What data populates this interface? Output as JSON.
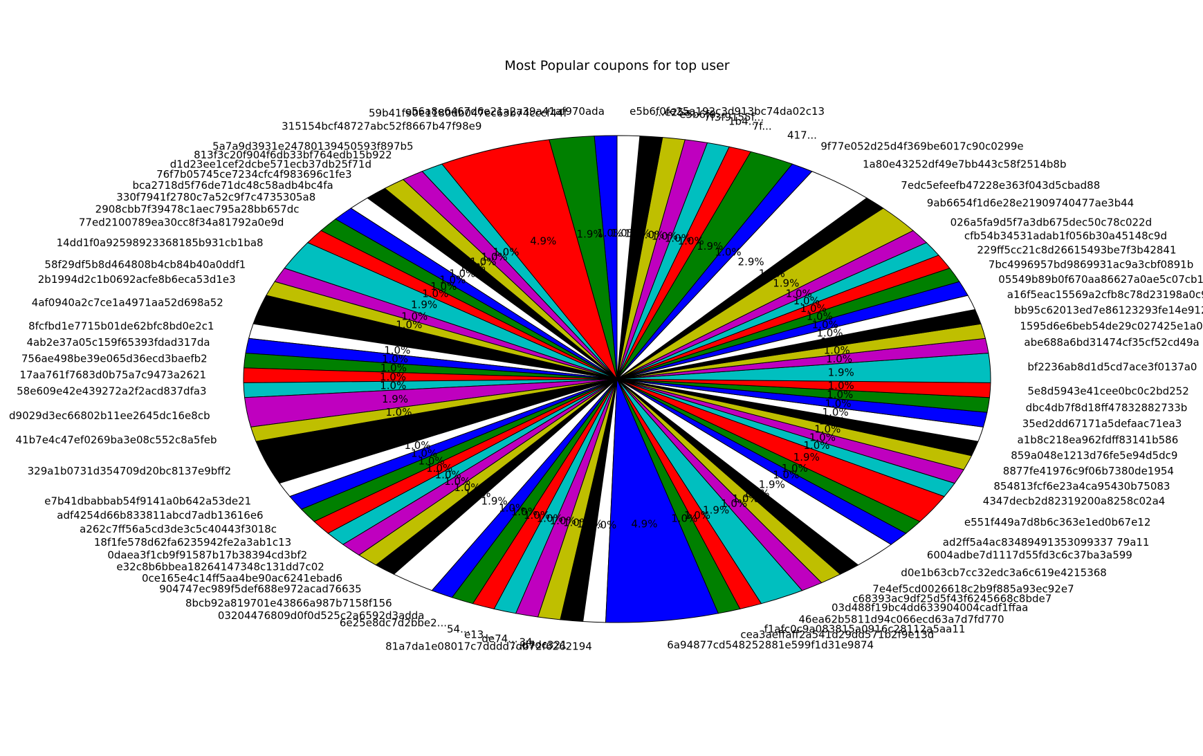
{
  "chart_data": {
    "type": "pie",
    "title": "Most Popular coupons for top user",
    "colors": [
      "#0000ff",
      "#008000",
      "#ff0000",
      "#00bfbf",
      "#bf00bf",
      "#bfbf00",
      "#000000",
      "#ffffff"
    ],
    "start_angle_deg": 90,
    "direction": "counterclockwise",
    "slices": [
      {
        "label": "e56a8e6467d6e21a2a39a41af970ada",
        "value": 1.0
      },
      {
        "label": "59b41f90e1180db047ec63b74cccf44f",
        "value": 2.0
      },
      {
        "label": "315154bcf48727abc52f8667b47f98e9",
        "value": 5.0
      },
      {
        "label": "5a7a9d3931e24780139450593f897b5",
        "value": 1.0
      },
      {
        "label": "813f3c20f904f6db33bf764edb15b922",
        "value": 1.0
      },
      {
        "label": "d1d23ee1cef2dcbe571ecb37db25f71d",
        "value": 1.0
      },
      {
        "label": "76f7b05745ce7234cfc4f983696c1fe3",
        "value": 1.0
      },
      {
        "label": "bca2718d5f76de71dc48c58adb4bc4fa",
        "value": 1.0
      },
      {
        "label": "330f7941f2780c7a52c9f7c4735305a8",
        "value": 1.0
      },
      {
        "label": "2908cbb7f39478c1aec795a28bb657dc",
        "value": 1.0
      },
      {
        "label": "77ed2100789ea30cc8f34a81792a0e9d",
        "value": 1.0
      },
      {
        "label": "14dd1f0a92598923368185b931cb1ba8",
        "value": 2.0
      },
      {
        "label": "58f29df5b8d464808b4cb84b40a0ddf1",
        "value": 1.0
      },
      {
        "label": "2b1994d2c1b0692acfe8b6eca53d1e3",
        "value": 1.0
      },
      {
        "label": "4af0940a2c7ce1a4971aa52d698a52",
        "value": 2.0
      },
      {
        "label": "8fcfbd1e7715b01de62bfc8bd0e2c1",
        "value": 1.0
      },
      {
        "label": "4ab2e37a05c159f65393fdad317da",
        "value": 1.0
      },
      {
        "label": "756ae498be39e065d36ecd3baefb2",
        "value": 1.0
      },
      {
        "label": "17aa761f7683d0b75a7c9473a2621",
        "value": 1.0
      },
      {
        "label": "58e609e42e439272a2f2acd837dfa3",
        "value": 1.0
      },
      {
        "label": "d9029d3ec66802b11ee2645dc16e8cb",
        "value": 2.0
      },
      {
        "label": "41b7e4c47ef0269ba3e08c552c8a5feb",
        "value": 1.0
      },
      {
        "label": "329a1b0731d354709d20bc8137e9bff2",
        "value": 3.0
      },
      {
        "label": "e7b41dbabbab54f9141a0b642a53de21",
        "value": 1.0
      },
      {
        "label": "adf4254d66b833811abcd7adb13616e6",
        "value": 1.0
      },
      {
        "label": "a262c7ff56a5cd3de3c5c40443f3018c",
        "value": 1.0
      },
      {
        "label": "18f1fe578d62fa6235942fe2a3ab1c13",
        "value": 1.0
      },
      {
        "label": "0daea3f1cb9f91587b17b38394cd3bf2",
        "value": 1.0
      },
      {
        "label": "e32c8b6bbea18264147348c131dd7c02",
        "value": 1.0
      },
      {
        "label": "0ce165e4c14ff5aa4be90ac6241ebad6",
        "value": 1.0
      },
      {
        "label": "904747ec989f5def688e972acad76635",
        "value": 1.0
      },
      {
        "label": "8bcb92a819701e43866a987b7158f156",
        "value": 2.0
      },
      {
        "label": "03204476809d0f0d525c2a6592d3adda",
        "value": 1.0
      },
      {
        "label": "6e25e8dc7d2bbe2...",
        "value": 1.0
      },
      {
        "label": "54...",
        "value": 1.0
      },
      {
        "label": "e13...",
        "value": 1.0
      },
      {
        "label": "de74...",
        "value": 1.0
      },
      {
        "label": "34...",
        "value": 1.0
      },
      {
        "label": "...d7dc321",
        "value": 1.0
      },
      {
        "label": "81a7da1e08017c7dddd7db72f6262194",
        "value": 1.0
      },
      {
        "label": "6a94877cd548252881e599f1d31e9874",
        "value": 5.0
      },
      {
        "label": "cea3aeffaff2a541d29dd571b2f9e13d",
        "value": 1.0
      },
      {
        "label": "f1afc0c9a083815a0916c28112a5aa11",
        "value": 1.0
      },
      {
        "label": "46ea62b5811d94c066ecd63a7d7fd770",
        "value": 2.0
      },
      {
        "label": "03d488f19bc4dd633904004cadf1ffaa",
        "value": 1.0
      },
      {
        "label": "c68393ac9df25d5f43f6245668c8bde7",
        "value": 1.0
      },
      {
        "label": "7e4ef5cd0026618c2b9f885a93ec92e7",
        "value": 1.0
      },
      {
        "label": "d0e1b63cb7cc32edc3a6c619e4215368",
        "value": 2.0
      },
      {
        "label": "6004adbe7d1117d55fd3c6c37ba3a599",
        "value": 1.0
      },
      {
        "label": "ad2ff5a4ac83489491353099337 79a11",
        "value": 1.0
      },
      {
        "label": "e551f449a7d8b6c363e1ed0b67e12",
        "value": 2.0
      },
      {
        "label": "4347decb2d82319200a8258c02a4",
        "value": 1.0
      },
      {
        "label": "854813fcf6e23a4ca95430b75083",
        "value": 1.0
      },
      {
        "label": "8877fe41976c9f06b7380de1954",
        "value": 1.0
      },
      {
        "label": "859a048e1213d76fe5e94d5dc9",
        "value": 1.0
      },
      {
        "label": "a1b8c218ea962fdff83141b586",
        "value": 1.0
      },
      {
        "label": "35ed2dd67171a5defaac71ea3",
        "value": 1.0
      },
      {
        "label": "dbc4db7f8d18ff47832882733b",
        "value": 1.0
      },
      {
        "label": "5e8d5943e41cee0bc0c2bd252",
        "value": 1.0
      },
      {
        "label": "bf2236ab8d1d5cd7ace3f0137a0",
        "value": 2.0
      },
      {
        "label": "abe688a6bd31474cf35cf52cd49a",
        "value": 1.0
      },
      {
        "label": "1595d6e6beb54de29c027425e1a0",
        "value": 1.0
      },
      {
        "label": "bb95c62013ed7e86123293fe14e912",
        "value": 1.0
      },
      {
        "label": "a16f5eac15569a2cfb8c78d23198a0c9",
        "value": 1.0
      },
      {
        "label": "05549b89b0f670aa86627a0ae5c07cb1",
        "value": 1.0
      },
      {
        "label": "7bc4996957bd9869931ac9a3cbf0891b",
        "value": 1.0
      },
      {
        "label": "229ff5cc21c8d26615493be7f3b42841",
        "value": 1.0
      },
      {
        "label": "cfb54b34531adab1f056b30a45148c9d",
        "value": 1.0
      },
      {
        "label": "026a5fa9d5f7a3db675dec50c78c022d",
        "value": 1.0
      },
      {
        "label": "9ab6654f1d6e28e21909740477ae3b44",
        "value": 2.0
      },
      {
        "label": "7edc5efeefb47228e363f043d5cbad88",
        "value": 1.0
      },
      {
        "label": "1a80e43252df49e7bb443c58f2514b8b",
        "value": 3.0
      },
      {
        "label": "9f77e052d25d4f369be6017c90c0299e",
        "value": 1.0
      },
      {
        "label": "417...",
        "value": 2.0
      },
      {
        "label": "7f...",
        "value": 1.0
      },
      {
        "label": "1b4...",
        "value": 1.0
      },
      {
        "label": "7f3f9155f...",
        "value": 1.0
      },
      {
        "label": "e5b6f0...",
        "value": 1.0
      },
      {
        "label": "...e25a...",
        "value": 1.0
      },
      {
        "label": "e5b6f0fe25a192c3d913bc74da02c13",
        "value": 1.0
      }
    ]
  }
}
